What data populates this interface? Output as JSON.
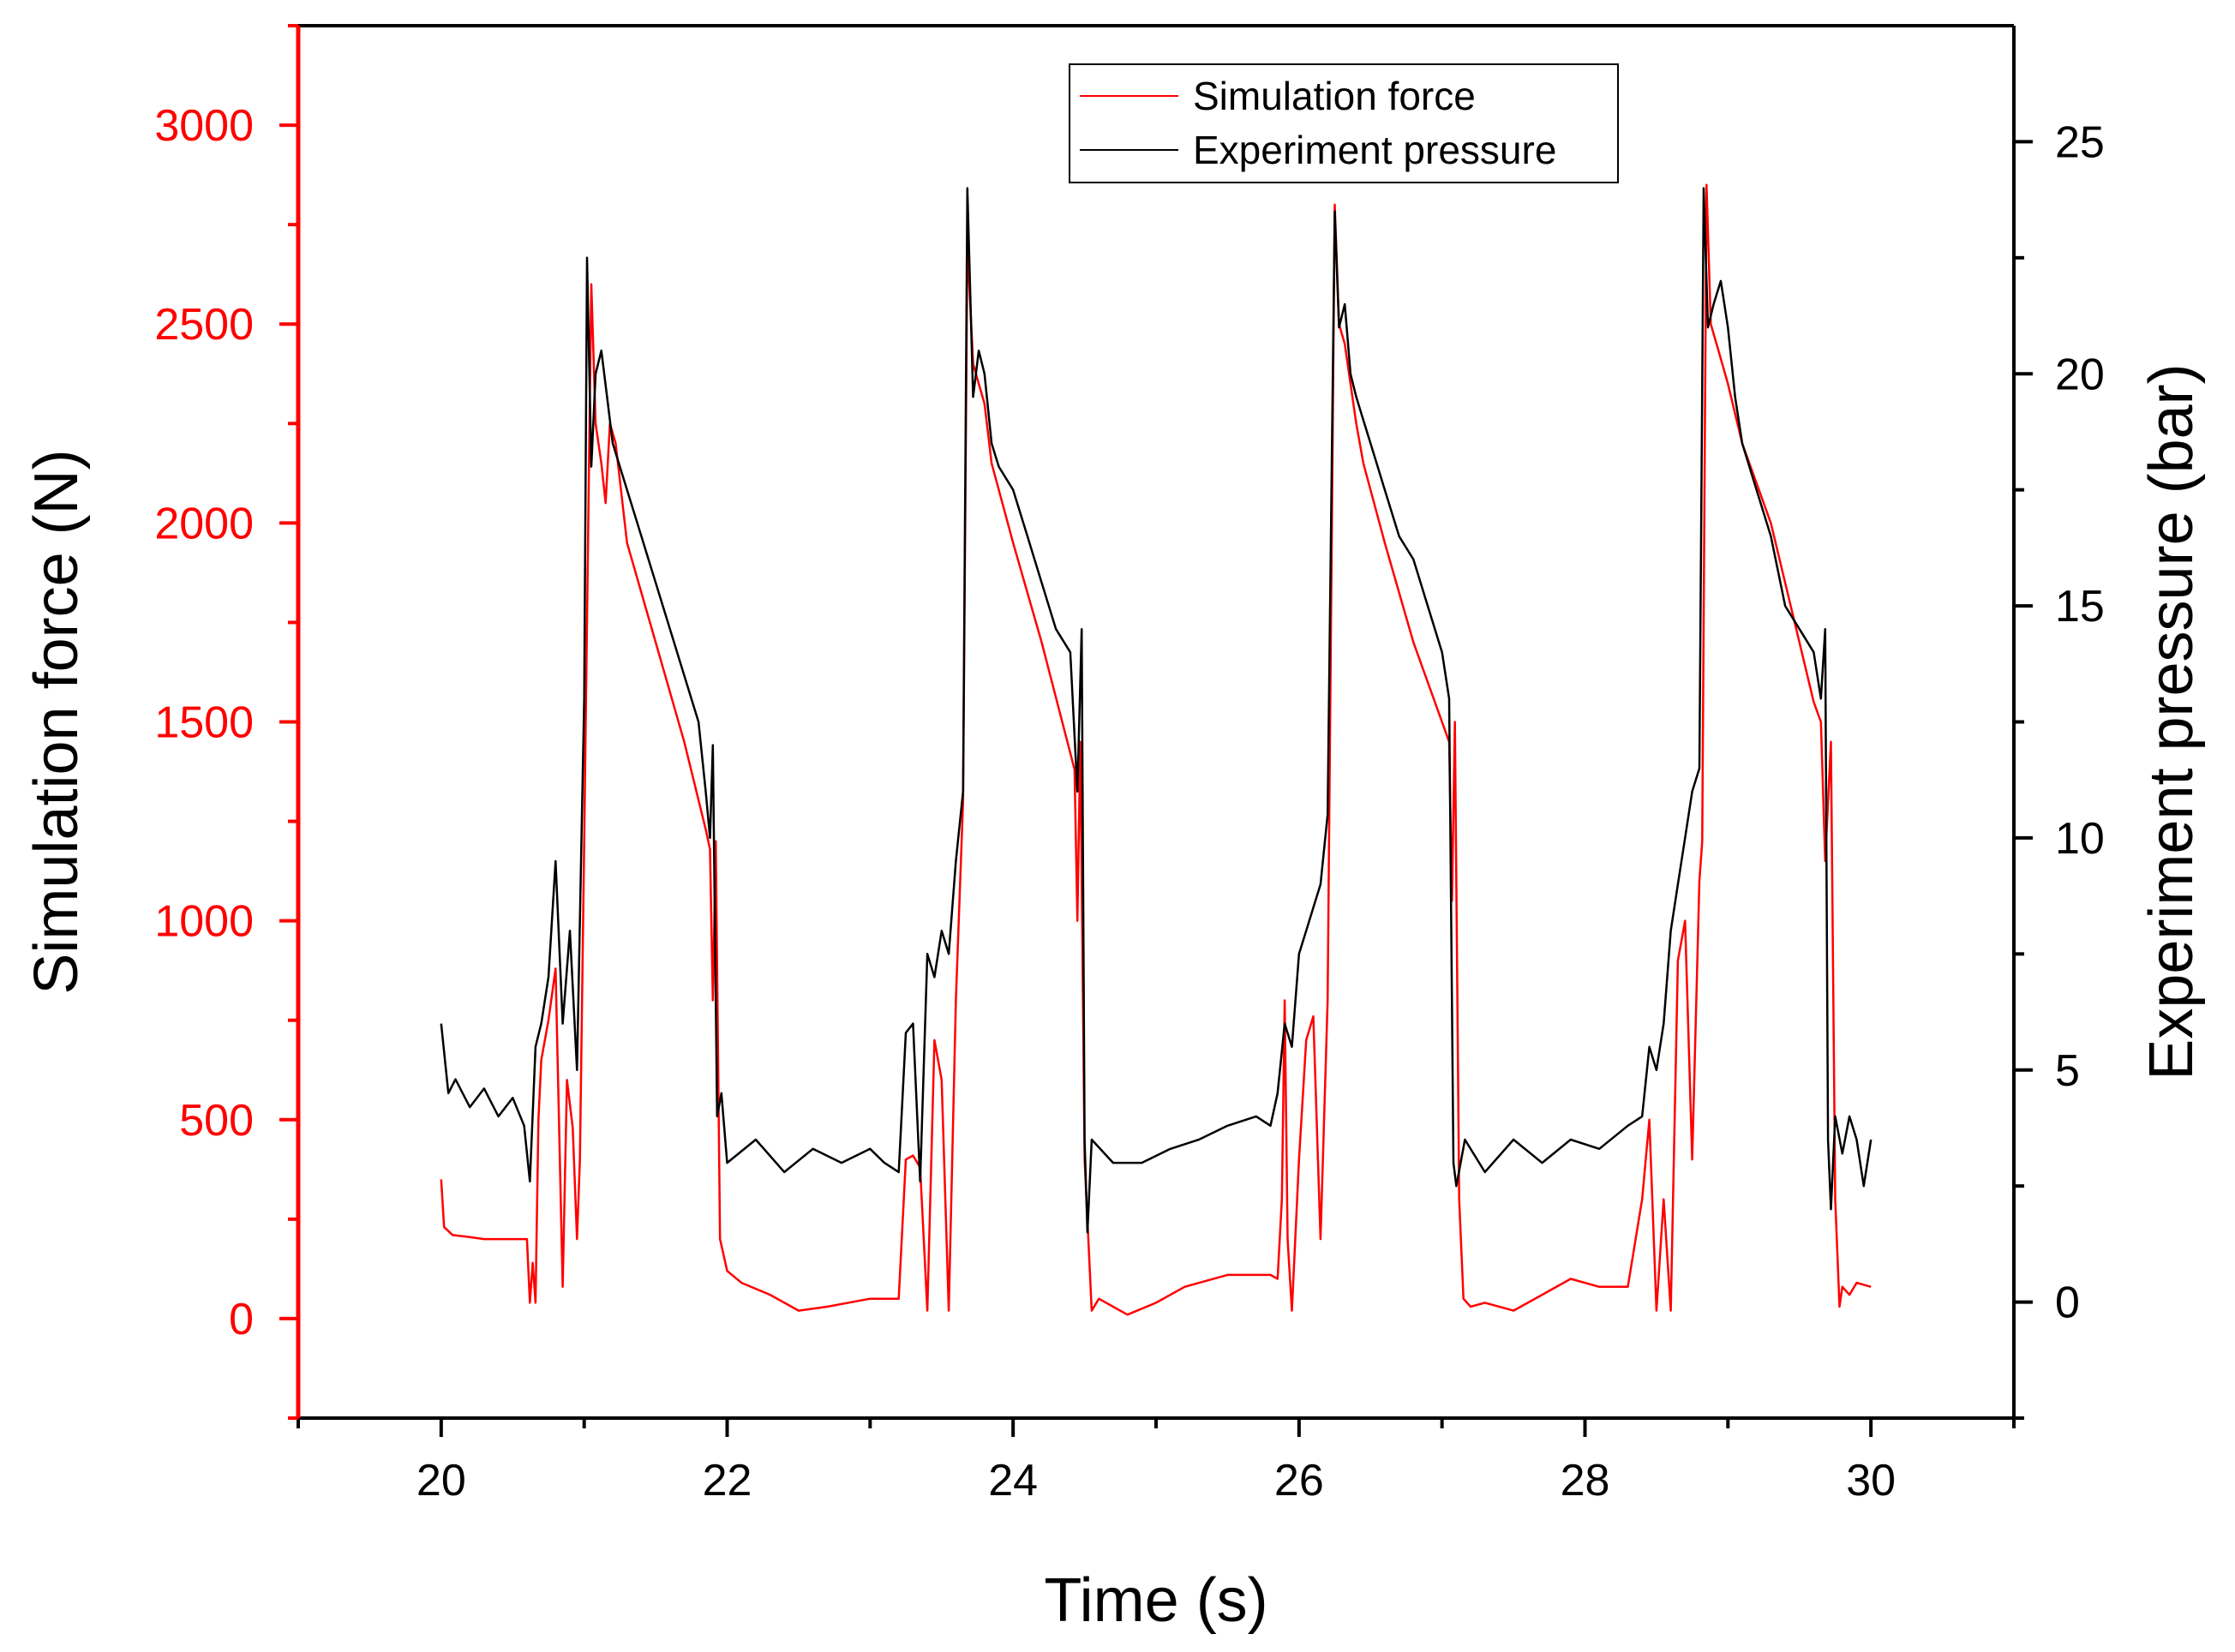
{
  "chart_data": {
    "type": "line",
    "title": "",
    "xlabel": "Time (s)",
    "ylabel_left": "Simulation force (N)",
    "ylabel_right": "Experiment pressure (bar)",
    "xlim": [
      19,
      31
    ],
    "ylim_left": [
      -250,
      3250
    ],
    "ylim_right": [
      -2.5,
      27.5
    ],
    "xticks": [
      20,
      22,
      24,
      26,
      28,
      30
    ],
    "yticks_left": [
      0,
      500,
      1000,
      1500,
      2000,
      2500,
      3000
    ],
    "yticks_right": [
      0,
      5,
      10,
      15,
      20,
      25
    ],
    "grid": false,
    "legend_position": "top-center",
    "colors": {
      "left_axis": "#ff0000",
      "right_axis": "#000000",
      "force": "#ff0000",
      "pressure": "#000000"
    },
    "series": [
      {
        "name": "Simulation force",
        "axis": "left",
        "color": "#ff0000",
        "x": [
          20.0,
          20.02,
          20.08,
          20.2,
          20.3,
          20.4,
          20.5,
          20.6,
          20.62,
          20.64,
          20.66,
          20.68,
          20.7,
          20.75,
          20.8,
          20.85,
          20.88,
          20.92,
          20.95,
          20.97,
          21.0,
          21.05,
          21.08,
          21.12,
          21.15,
          21.18,
          21.22,
          21.3,
          21.5,
          21.7,
          21.85,
          21.88,
          21.9,
          21.92,
          21.95,
          22.0,
          22.1,
          22.3,
          22.5,
          22.7,
          23.0,
          23.2,
          23.25,
          23.3,
          23.35,
          23.4,
          23.45,
          23.5,
          23.55,
          23.6,
          23.65,
          23.68,
          23.72,
          23.76,
          23.8,
          23.85,
          24.0,
          24.2,
          24.43,
          24.45,
          24.47,
          24.5,
          24.55,
          24.6,
          24.7,
          24.8,
          25.0,
          25.2,
          25.5,
          25.8,
          25.85,
          25.88,
          25.9,
          25.92,
          25.95,
          26.0,
          26.05,
          26.1,
          26.15,
          26.2,
          26.25,
          26.28,
          26.32,
          26.36,
          26.4,
          26.45,
          26.6,
          26.8,
          27.05,
          27.07,
          27.09,
          27.12,
          27.15,
          27.2,
          27.3,
          27.5,
          27.7,
          27.9,
          28.1,
          28.3,
          28.4,
          28.45,
          28.5,
          28.55,
          28.6,
          28.65,
          28.7,
          28.75,
          28.8,
          28.82,
          28.85,
          28.88,
          28.92,
          28.96,
          29.0,
          29.1,
          29.3,
          29.6,
          29.65,
          29.68,
          29.72,
          29.75,
          29.78,
          29.8,
          29.85,
          29.9,
          30.0
        ],
        "values": [
          350,
          230,
          210,
          205,
          200,
          200,
          200,
          200,
          40,
          140,
          40,
          500,
          650,
          750,
          880,
          80,
          600,
          480,
          200,
          400,
          1200,
          2600,
          2250,
          2150,
          2050,
          2250,
          2200,
          1950,
          1700,
          1450,
          1230,
          1180,
          800,
          1200,
          200,
          120,
          90,
          60,
          20,
          30,
          50,
          50,
          400,
          410,
          380,
          20,
          700,
          600,
          20,
          800,
          1300,
          2700,
          2400,
          2350,
          2300,
          2150,
          1950,
          1700,
          1380,
          1000,
          1450,
          400,
          20,
          50,
          30,
          10,
          40,
          80,
          110,
          110,
          100,
          300,
          800,
          200,
          20,
          400,
          700,
          760,
          200,
          800,
          2800,
          2500,
          2450,
          2350,
          2250,
          2150,
          1950,
          1700,
          1450,
          1050,
          1500,
          300,
          50,
          30,
          40,
          20,
          60,
          100,
          80,
          80,
          300,
          500,
          20,
          300,
          20,
          900,
          1000,
          400,
          1100,
          1200,
          2850,
          2500,
          2450,
          2400,
          2350,
          2200,
          2000,
          1550,
          1500,
          1150,
          1450,
          300,
          30,
          80,
          60,
          90,
          80
        ]
      },
      {
        "name": "Experiment pressure",
        "axis": "right",
        "color": "#000000",
        "x": [
          20.0,
          20.05,
          20.1,
          20.2,
          20.3,
          20.4,
          20.5,
          20.58,
          20.62,
          20.66,
          20.7,
          20.75,
          20.8,
          20.85,
          20.9,
          20.95,
          21.0,
          21.02,
          21.05,
          21.08,
          21.12,
          21.16,
          21.2,
          21.3,
          21.4,
          21.5,
          21.6,
          21.7,
          21.8,
          21.85,
          21.88,
          21.9,
          21.93,
          21.96,
          22.0,
          22.2,
          22.4,
          22.6,
          22.8,
          23.0,
          23.1,
          23.2,
          23.25,
          23.3,
          23.35,
          23.4,
          23.45,
          23.5,
          23.55,
          23.6,
          23.65,
          23.68,
          23.72,
          23.76,
          23.8,
          23.85,
          23.9,
          24.0,
          24.1,
          24.2,
          24.3,
          24.4,
          24.45,
          24.48,
          24.5,
          24.52,
          24.55,
          24.7,
          24.9,
          25.1,
          25.3,
          25.5,
          25.7,
          25.8,
          25.85,
          25.9,
          25.95,
          26.0,
          26.05,
          26.1,
          26.15,
          26.2,
          26.25,
          26.28,
          26.32,
          26.36,
          26.4,
          26.45,
          26.5,
          26.6,
          26.7,
          26.8,
          26.9,
          27.0,
          27.05,
          27.08,
          27.1,
          27.13,
          27.16,
          27.3,
          27.5,
          27.7,
          27.9,
          28.1,
          28.3,
          28.4,
          28.45,
          28.5,
          28.55,
          28.6,
          28.65,
          28.7,
          28.75,
          28.8,
          28.83,
          28.86,
          28.9,
          28.95,
          29.0,
          29.05,
          29.1,
          29.2,
          29.3,
          29.4,
          29.5,
          29.6,
          29.65,
          29.68,
          29.7,
          29.72,
          29.75,
          29.8,
          29.85,
          29.9,
          29.95,
          30.0
        ],
        "values": [
          6,
          4.5,
          4.8,
          4.2,
          4.6,
          4.0,
          4.4,
          3.8,
          2.6,
          5.5,
          6.0,
          7.0,
          9.5,
          6.0,
          8.0,
          5.0,
          13.0,
          22.5,
          18.0,
          20.0,
          20.5,
          19.5,
          18.5,
          17.5,
          16.5,
          15.5,
          14.5,
          13.5,
          12.5,
          11.0,
          10.0,
          12.0,
          4.0,
          4.5,
          3.0,
          3.5,
          2.8,
          3.3,
          3.0,
          3.3,
          3.0,
          2.8,
          5.8,
          6.0,
          2.6,
          7.5,
          7.0,
          8.0,
          7.5,
          9.5,
          11.0,
          24.0,
          19.5,
          20.5,
          20.0,
          18.5,
          18.0,
          17.5,
          16.5,
          15.5,
          14.5,
          14.0,
          11.0,
          14.5,
          3.5,
          1.5,
          3.5,
          3.0,
          3.0,
          3.3,
          3.5,
          3.8,
          4.0,
          3.8,
          4.5,
          6.0,
          5.5,
          7.5,
          8.0,
          8.5,
          9.0,
          10.5,
          23.5,
          21.0,
          21.5,
          20.0,
          19.5,
          19.0,
          18.5,
          17.5,
          16.5,
          16.0,
          15.0,
          14.0,
          13.0,
          3.0,
          2.5,
          3.0,
          3.5,
          2.8,
          3.5,
          3.0,
          3.5,
          3.3,
          3.8,
          4.0,
          5.5,
          5.0,
          6.0,
          8.0,
          9.0,
          10.0,
          11.0,
          11.5,
          24.0,
          21.0,
          21.5,
          22.0,
          21.0,
          19.5,
          18.5,
          17.5,
          16.5,
          15.0,
          14.5,
          14.0,
          13.0,
          14.5,
          3.5,
          2.0,
          4.0,
          3.2,
          4.0,
          3.5,
          2.5,
          3.5
        ]
      }
    ]
  }
}
